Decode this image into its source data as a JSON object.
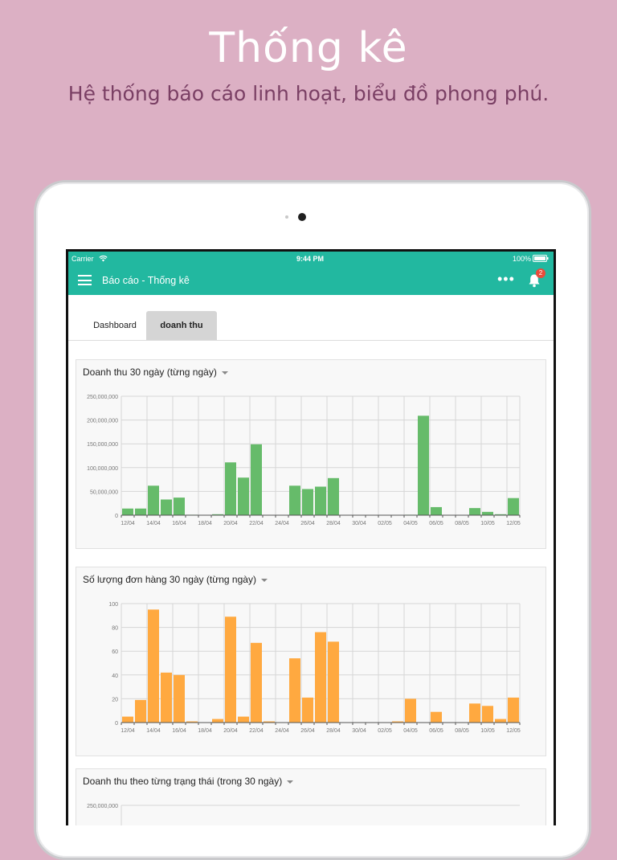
{
  "promo": {
    "title": "Thống kê",
    "subtitle": "Hệ thống báo cáo linh hoạt, biểu đồ phong phú."
  },
  "status_bar": {
    "carrier": "Carrier",
    "time": "9:44 PM",
    "battery": "100%"
  },
  "nav": {
    "title": "Báo cáo - Thống kê",
    "more": "•••",
    "notification_count": "2"
  },
  "tabs": [
    {
      "label": "Dashboard"
    },
    {
      "label": "doanh thu"
    }
  ],
  "colors": {
    "accent": "#22b8a0",
    "green_bar": "#66bb6a",
    "orange_bar": "#ffa940",
    "badge": "#e74c3c"
  },
  "chart_data": [
    {
      "type": "bar",
      "title": "Doanh thu 30 ngày (từng ngày)",
      "ylim": [
        0,
        250000000
      ],
      "yticks": [
        "0",
        "50,000,000",
        "100,000,000",
        "150,000,000",
        "200,000,000",
        "250,000,000"
      ],
      "xtick_labels": [
        "12/04",
        "14/04",
        "16/04",
        "18/04",
        "20/04",
        "22/04",
        "24/04",
        "26/04",
        "28/04",
        "30/04",
        "02/05",
        "04/05",
        "06/05",
        "08/05",
        "10/05",
        "12/05"
      ],
      "series": [
        {
          "values": [
            14000000,
            14000000,
            62000000,
            33000000,
            37000000,
            1000000,
            0,
            2000000,
            111000000,
            79000000,
            149000000,
            0,
            0,
            62000000,
            55000000,
            60000000,
            78000000,
            0,
            0,
            0,
            0,
            0,
            1000000,
            209000000,
            17000000,
            0,
            0,
            15000000,
            7000000,
            2000000,
            36000000
          ]
        }
      ]
    },
    {
      "type": "bar",
      "title": "Số lượng đơn hàng 30 ngày (từng ngày)",
      "ylim": [
        0,
        100
      ],
      "yticks": [
        "0",
        "20",
        "40",
        "60",
        "80",
        "100"
      ],
      "xtick_labels": [
        "12/04",
        "14/04",
        "16/04",
        "18/04",
        "20/04",
        "22/04",
        "24/04",
        "26/04",
        "28/04",
        "30/04",
        "02/05",
        "04/05",
        "06/05",
        "08/05",
        "10/05",
        "12/05"
      ],
      "series": [
        {
          "values": [
            5,
            19,
            95,
            42,
            40,
            1,
            0,
            3,
            89,
            5,
            67,
            1,
            0,
            54,
            21,
            76,
            68,
            0,
            0,
            0,
            0,
            1,
            20,
            0,
            9,
            0,
            0,
            16,
            14,
            3,
            21
          ]
        }
      ]
    },
    {
      "type": "bar",
      "title": "Doanh thu theo từng trạng thái (trong 30 ngày)",
      "ylim": [
        0,
        250000000
      ],
      "yticks": [
        "250,000,000"
      ]
    }
  ]
}
